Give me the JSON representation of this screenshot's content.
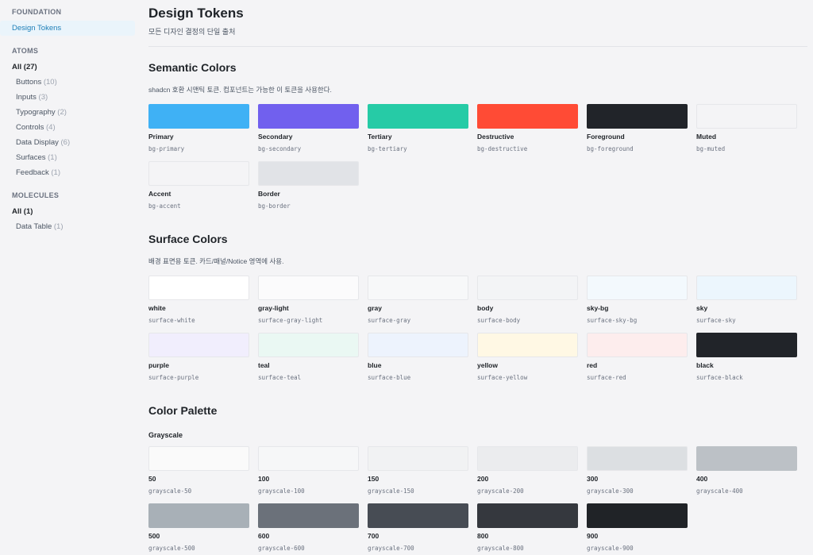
{
  "sidebar": {
    "foundation": {
      "title": "FOUNDATION",
      "items": [
        {
          "label": "Design Tokens",
          "active": true
        }
      ]
    },
    "atoms": {
      "title": "ATOMS",
      "all_label": "All",
      "all_count": "(27)",
      "items": [
        {
          "label": "Buttons",
          "count": "(10)"
        },
        {
          "label": "Inputs",
          "count": "(3)"
        },
        {
          "label": "Typography",
          "count": "(2)"
        },
        {
          "label": "Controls",
          "count": "(4)"
        },
        {
          "label": "Data Display",
          "count": "(6)"
        },
        {
          "label": "Surfaces",
          "count": "(1)"
        },
        {
          "label": "Feedback",
          "count": "(1)"
        }
      ]
    },
    "molecules": {
      "title": "MOLECULES",
      "all_label": "All",
      "all_count": "(1)",
      "items": [
        {
          "label": "Data Table",
          "count": "(1)"
        }
      ]
    }
  },
  "main": {
    "title": "Design Tokens",
    "subtitle": "모든 디자인 결정의 단일 출처",
    "semantic": {
      "title": "Semantic Colors",
      "desc": "shadcn 호환 시맨틱 토큰. 컴포넌트는 가능한 이 토큰을 사용한다.",
      "colors": [
        {
          "name": "Primary",
          "code": "bg-primary",
          "color": "#3fb1f5"
        },
        {
          "name": "Secondary",
          "code": "bg-secondary",
          "color": "#7160ee"
        },
        {
          "name": "Tertiary",
          "code": "bg-tertiary",
          "color": "#26cba6"
        },
        {
          "name": "Destructive",
          "code": "bg-destructive",
          "color": "#ff4b35"
        },
        {
          "name": "Foreground",
          "code": "bg-foreground",
          "color": "#212429"
        },
        {
          "name": "Muted",
          "code": "bg-muted",
          "color": "#f4f4f6"
        },
        {
          "name": "Accent",
          "code": "bg-accent",
          "color": "#f4f4f6"
        },
        {
          "name": "Border",
          "code": "bg-border",
          "color": "#e1e3e7"
        }
      ]
    },
    "surface": {
      "title": "Surface Colors",
      "desc": "배경 표면용 토큰. 카드/패널/Notice 영역에 사용.",
      "colors": [
        {
          "name": "white",
          "code": "surface-white",
          "color": "#ffffff"
        },
        {
          "name": "gray-light",
          "code": "surface-gray-light",
          "color": "#fbfbfc"
        },
        {
          "name": "gray",
          "code": "surface-gray",
          "color": "#f7f8f9"
        },
        {
          "name": "body",
          "code": "surface-body",
          "color": "#f3f4f6"
        },
        {
          "name": "sky-bg",
          "code": "surface-sky-bg",
          "color": "#f3f9fd"
        },
        {
          "name": "sky",
          "code": "surface-sky",
          "color": "#ecf6fd"
        },
        {
          "name": "purple",
          "code": "surface-purple",
          "color": "#f1eefd"
        },
        {
          "name": "teal",
          "code": "surface-teal",
          "color": "#eaf8f3"
        },
        {
          "name": "blue",
          "code": "surface-blue",
          "color": "#edf3fd"
        },
        {
          "name": "yellow",
          "code": "surface-yellow",
          "color": "#fff8e4"
        },
        {
          "name": "red",
          "code": "surface-red",
          "color": "#fdeded"
        },
        {
          "name": "black",
          "code": "surface-black",
          "color": "#212429"
        }
      ]
    },
    "palette": {
      "title": "Color Palette",
      "grayscale_title": "Grayscale",
      "colors": [
        {
          "name": "50",
          "code": "grayscale-50",
          "color": "#fafafa"
        },
        {
          "name": "100",
          "code": "grayscale-100",
          "color": "#f6f7f8"
        },
        {
          "name": "150",
          "code": "grayscale-150",
          "color": "#f1f2f3"
        },
        {
          "name": "200",
          "code": "grayscale-200",
          "color": "#ebecee"
        },
        {
          "name": "300",
          "code": "grayscale-300",
          "color": "#dcdfe2"
        },
        {
          "name": "400",
          "code": "grayscale-400",
          "color": "#bcc1c6"
        },
        {
          "name": "500",
          "code": "grayscale-500",
          "color": "#a8b0b7"
        },
        {
          "name": "600",
          "code": "grayscale-600",
          "color": "#6b717a"
        },
        {
          "name": "700",
          "code": "grayscale-700",
          "color": "#474c54"
        },
        {
          "name": "800",
          "code": "grayscale-800",
          "color": "#35383e"
        },
        {
          "name": "900",
          "code": "grayscale-900",
          "color": "#202327"
        }
      ]
    }
  }
}
